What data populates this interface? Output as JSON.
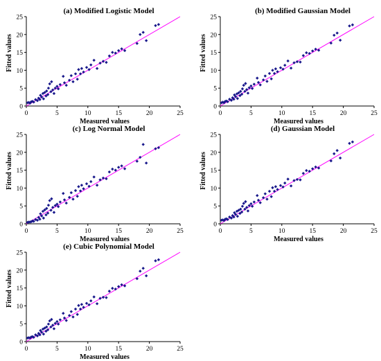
{
  "chart_data": [
    {
      "type": "scatter",
      "title": "(a) Modified Logistic Model",
      "xlabel": "Measured values",
      "ylabel": "Fitted values",
      "xlim": [
        0,
        25
      ],
      "ylim": [
        0,
        25
      ],
      "xticks": [
        0,
        5,
        10,
        15,
        20,
        25
      ],
      "yticks": [
        0,
        5,
        10,
        15,
        20,
        25
      ],
      "fit_line": [
        [
          0,
          0
        ],
        [
          25,
          25
        ]
      ],
      "points": [
        [
          0.2,
          0.9
        ],
        [
          0.4,
          1.0
        ],
        [
          0.6,
          0.8
        ],
        [
          0.8,
          1.2
        ],
        [
          1.0,
          1.3
        ],
        [
          1.2,
          1.1
        ],
        [
          1.5,
          1.8
        ],
        [
          1.8,
          1.5
        ],
        [
          2.0,
          2.2
        ],
        [
          2.2,
          1.8
        ],
        [
          2.3,
          3.0
        ],
        [
          2.5,
          2.5
        ],
        [
          2.7,
          3.5
        ],
        [
          2.8,
          2.0
        ],
        [
          3.0,
          3.8
        ],
        [
          3.2,
          2.8
        ],
        [
          3.3,
          4.2
        ],
        [
          3.5,
          3.2
        ],
        [
          3.6,
          5.0
        ],
        [
          3.8,
          6.2
        ],
        [
          4.0,
          4.0
        ],
        [
          4.1,
          6.8
        ],
        [
          4.3,
          4.5
        ],
        [
          4.5,
          3.5
        ],
        [
          4.7,
          5.0
        ],
        [
          5.0,
          5.5
        ],
        [
          5.2,
          4.8
        ],
        [
          5.5,
          6.0
        ],
        [
          6.0,
          8.3
        ],
        [
          6.2,
          6.5
        ],
        [
          6.5,
          5.8
        ],
        [
          7.0,
          7.2
        ],
        [
          7.3,
          8.5
        ],
        [
          7.6,
          6.8
        ],
        [
          8.0,
          9.0
        ],
        [
          8.3,
          7.5
        ],
        [
          8.5,
          10.2
        ],
        [
          8.8,
          9.0
        ],
        [
          9.0,
          10.5
        ],
        [
          9.3,
          9.5
        ],
        [
          9.8,
          10.8
        ],
        [
          10.2,
          10.2
        ],
        [
          10.5,
          11.5
        ],
        [
          11.0,
          12.8
        ],
        [
          11.5,
          10.5
        ],
        [
          12.0,
          12.0
        ],
        [
          12.5,
          12.5
        ],
        [
          13.0,
          12.2
        ],
        [
          13.5,
          14.0
        ],
        [
          14.0,
          15.0
        ],
        [
          14.5,
          14.8
        ],
        [
          15.0,
          15.5
        ],
        [
          15.5,
          16.0
        ],
        [
          16.0,
          15.5
        ],
        [
          18.0,
          17.5
        ],
        [
          18.5,
          20.0
        ],
        [
          19.0,
          20.6
        ],
        [
          19.5,
          18.3
        ],
        [
          21.0,
          22.5
        ],
        [
          21.5,
          22.8
        ]
      ]
    },
    {
      "type": "scatter",
      "title": "(b) Modified Gaussian Model",
      "xlabel": "Measured values",
      "ylabel": "Fitted values",
      "xlim": [
        0,
        25
      ],
      "ylim": [
        0,
        25
      ],
      "xticks": [
        0,
        5,
        10,
        15,
        20,
        25
      ],
      "yticks": [
        0,
        5,
        10,
        15,
        20,
        25
      ],
      "fit_line": [
        [
          0,
          0
        ],
        [
          25,
          25
        ]
      ],
      "points": [
        [
          0.2,
          0.9
        ],
        [
          0.4,
          1.1
        ],
        [
          0.6,
          0.9
        ],
        [
          0.8,
          1.3
        ],
        [
          1.0,
          1.4
        ],
        [
          1.2,
          1.2
        ],
        [
          1.5,
          1.9
        ],
        [
          1.8,
          1.6
        ],
        [
          2.0,
          2.3
        ],
        [
          2.2,
          1.9
        ],
        [
          2.3,
          3.1
        ],
        [
          2.5,
          2.6
        ],
        [
          2.7,
          3.4
        ],
        [
          2.8,
          2.1
        ],
        [
          3.0,
          3.7
        ],
        [
          3.2,
          2.9
        ],
        [
          3.3,
          4.1
        ],
        [
          3.5,
          3.3
        ],
        [
          3.6,
          4.8
        ],
        [
          3.8,
          5.8
        ],
        [
          4.0,
          4.1
        ],
        [
          4.1,
          6.3
        ],
        [
          4.3,
          4.6
        ],
        [
          4.5,
          3.6
        ],
        [
          4.7,
          5.1
        ],
        [
          5.0,
          5.6
        ],
        [
          5.2,
          4.9
        ],
        [
          5.5,
          6.1
        ],
        [
          6.0,
          7.8
        ],
        [
          6.2,
          6.6
        ],
        [
          6.5,
          5.9
        ],
        [
          7.0,
          7.3
        ],
        [
          7.3,
          8.4
        ],
        [
          7.6,
          6.9
        ],
        [
          8.0,
          9.1
        ],
        [
          8.3,
          7.6
        ],
        [
          8.5,
          10.0
        ],
        [
          8.8,
          9.1
        ],
        [
          9.0,
          10.4
        ],
        [
          9.3,
          9.6
        ],
        [
          9.8,
          10.7
        ],
        [
          10.2,
          10.3
        ],
        [
          10.5,
          11.4
        ],
        [
          11.0,
          12.6
        ],
        [
          11.5,
          10.6
        ],
        [
          12.0,
          12.1
        ],
        [
          12.5,
          12.4
        ],
        [
          13.0,
          12.3
        ],
        [
          13.5,
          14.1
        ],
        [
          14.0,
          14.9
        ],
        [
          14.5,
          14.7
        ],
        [
          15.0,
          15.4
        ],
        [
          15.5,
          15.9
        ],
        [
          16.0,
          15.6
        ],
        [
          18.0,
          17.6
        ],
        [
          18.5,
          19.8
        ],
        [
          19.0,
          20.4
        ],
        [
          19.5,
          18.4
        ],
        [
          21.0,
          22.4
        ],
        [
          21.5,
          22.7
        ]
      ]
    },
    {
      "type": "scatter",
      "title": "(c) Log Normal Model",
      "xlabel": "Measured values",
      "ylabel": "Fitted values",
      "xlim": [
        0,
        25
      ],
      "ylim": [
        0,
        25
      ],
      "xticks": [
        0,
        5,
        10,
        15,
        20,
        25
      ],
      "yticks": [
        0,
        5,
        10,
        15,
        20,
        25
      ],
      "fit_line": [
        [
          0,
          0
        ],
        [
          25,
          25
        ]
      ],
      "points": [
        [
          0.2,
          0.4
        ],
        [
          0.4,
          0.5
        ],
        [
          0.6,
          0.5
        ],
        [
          0.8,
          0.6
        ],
        [
          1.0,
          0.8
        ],
        [
          1.2,
          0.7
        ],
        [
          1.5,
          1.2
        ],
        [
          1.8,
          1.0
        ],
        [
          2.0,
          1.8
        ],
        [
          2.2,
          1.3
        ],
        [
          2.3,
          2.8
        ],
        [
          2.5,
          2.2
        ],
        [
          2.7,
          3.5
        ],
        [
          2.8,
          1.6
        ],
        [
          3.0,
          3.9
        ],
        [
          3.2,
          2.5
        ],
        [
          3.3,
          4.3
        ],
        [
          3.5,
          3.0
        ],
        [
          3.6,
          5.2
        ],
        [
          3.8,
          6.5
        ],
        [
          4.0,
          3.8
        ],
        [
          4.1,
          7.0
        ],
        [
          4.3,
          4.6
        ],
        [
          4.5,
          3.2
        ],
        [
          4.7,
          5.1
        ],
        [
          5.0,
          5.5
        ],
        [
          5.2,
          4.8
        ],
        [
          5.5,
          6.1
        ],
        [
          6.0,
          8.5
        ],
        [
          6.2,
          6.7
        ],
        [
          6.5,
          5.8
        ],
        [
          7.0,
          7.4
        ],
        [
          7.3,
          8.7
        ],
        [
          7.6,
          6.9
        ],
        [
          8.0,
          9.3
        ],
        [
          8.3,
          7.7
        ],
        [
          8.5,
          10.4
        ],
        [
          8.8,
          9.2
        ],
        [
          9.0,
          10.8
        ],
        [
          9.3,
          9.8
        ],
        [
          9.8,
          11.2
        ],
        [
          10.2,
          10.5
        ],
        [
          10.5,
          11.8
        ],
        [
          11.0,
          13.1
        ],
        [
          11.5,
          10.8
        ],
        [
          12.0,
          12.3
        ],
        [
          12.5,
          12.8
        ],
        [
          13.0,
          12.6
        ],
        [
          13.5,
          14.5
        ],
        [
          14.0,
          15.3
        ],
        [
          14.5,
          15.0
        ],
        [
          15.0,
          15.8
        ],
        [
          15.5,
          16.2
        ],
        [
          16.0,
          15.4
        ],
        [
          18.0,
          17.5
        ],
        [
          18.5,
          18.6
        ],
        [
          19.0,
          22.2
        ],
        [
          19.5,
          17.0
        ],
        [
          21.0,
          21.0
        ],
        [
          21.5,
          21.3
        ]
      ]
    },
    {
      "type": "scatter",
      "title": "(d) Gaussian Model",
      "xlabel": "Measured values",
      "ylabel": "Fitted values",
      "xlim": [
        0,
        25
      ],
      "ylim": [
        0,
        25
      ],
      "xticks": [
        0,
        5,
        10,
        15,
        20,
        25
      ],
      "yticks": [
        0,
        5,
        10,
        15,
        20,
        25
      ],
      "fit_line": [
        [
          0,
          0
        ],
        [
          25,
          25
        ]
      ],
      "points": [
        [
          0.2,
          1.0
        ],
        [
          0.4,
          1.1
        ],
        [
          0.6,
          0.9
        ],
        [
          0.8,
          1.3
        ],
        [
          1.0,
          1.4
        ],
        [
          1.2,
          1.2
        ],
        [
          1.5,
          1.9
        ],
        [
          1.8,
          1.6
        ],
        [
          2.0,
          2.3
        ],
        [
          2.2,
          1.9
        ],
        [
          2.3,
          3.1
        ],
        [
          2.5,
          2.6
        ],
        [
          2.7,
          3.5
        ],
        [
          2.8,
          2.1
        ],
        [
          3.0,
          3.8
        ],
        [
          3.2,
          2.9
        ],
        [
          3.3,
          4.1
        ],
        [
          3.5,
          3.3
        ],
        [
          3.6,
          4.9
        ],
        [
          3.8,
          5.7
        ],
        [
          4.0,
          4.1
        ],
        [
          4.1,
          6.2
        ],
        [
          4.3,
          4.6
        ],
        [
          4.5,
          3.6
        ],
        [
          4.7,
          5.1
        ],
        [
          5.0,
          5.6
        ],
        [
          5.2,
          4.9
        ],
        [
          5.5,
          6.1
        ],
        [
          6.0,
          7.9
        ],
        [
          6.2,
          6.6
        ],
        [
          6.5,
          5.9
        ],
        [
          7.0,
          7.3
        ],
        [
          7.3,
          8.4
        ],
        [
          7.6,
          6.9
        ],
        [
          8.0,
          9.1
        ],
        [
          8.3,
          7.6
        ],
        [
          8.5,
          10.1
        ],
        [
          8.8,
          9.1
        ],
        [
          9.0,
          10.4
        ],
        [
          9.3,
          9.6
        ],
        [
          9.8,
          10.7
        ],
        [
          10.2,
          10.3
        ],
        [
          10.5,
          11.4
        ],
        [
          11.0,
          12.5
        ],
        [
          11.5,
          10.6
        ],
        [
          12.0,
          12.1
        ],
        [
          12.5,
          12.4
        ],
        [
          13.0,
          12.3
        ],
        [
          13.5,
          14.1
        ],
        [
          14.0,
          14.9
        ],
        [
          14.5,
          14.7
        ],
        [
          15.0,
          15.4
        ],
        [
          15.5,
          15.9
        ],
        [
          16.0,
          15.6
        ],
        [
          18.0,
          17.6
        ],
        [
          18.5,
          19.6
        ],
        [
          19.0,
          20.5
        ],
        [
          19.5,
          18.4
        ],
        [
          21.0,
          22.5
        ],
        [
          21.5,
          22.9
        ]
      ]
    },
    {
      "type": "scatter",
      "title": "(e)  Cubic Polynomial Model",
      "xlabel": "Measured values",
      "ylabel": "Fitted values",
      "xlim": [
        0,
        25
      ],
      "ylim": [
        0,
        25
      ],
      "xticks": [
        0,
        5,
        10,
        15,
        20,
        25
      ],
      "yticks": [
        0,
        5,
        10,
        15,
        20,
        25
      ],
      "fit_line": [
        [
          0,
          0
        ],
        [
          25,
          25
        ]
      ],
      "points": [
        [
          0.2,
          1.0
        ],
        [
          0.4,
          1.1
        ],
        [
          0.6,
          1.0
        ],
        [
          0.8,
          1.3
        ],
        [
          1.0,
          1.4
        ],
        [
          1.2,
          1.2
        ],
        [
          1.5,
          1.9
        ],
        [
          1.8,
          1.6
        ],
        [
          2.0,
          2.3
        ],
        [
          2.2,
          1.9
        ],
        [
          2.3,
          3.1
        ],
        [
          2.5,
          2.6
        ],
        [
          2.7,
          3.5
        ],
        [
          2.8,
          2.1
        ],
        [
          3.0,
          3.8
        ],
        [
          3.2,
          2.9
        ],
        [
          3.3,
          4.1
        ],
        [
          3.5,
          3.3
        ],
        [
          3.6,
          4.9
        ],
        [
          3.8,
          5.8
        ],
        [
          4.0,
          4.1
        ],
        [
          4.1,
          6.2
        ],
        [
          4.3,
          4.6
        ],
        [
          4.5,
          3.6
        ],
        [
          4.7,
          5.1
        ],
        [
          5.0,
          5.6
        ],
        [
          5.2,
          4.9
        ],
        [
          5.5,
          6.1
        ],
        [
          6.0,
          7.9
        ],
        [
          6.2,
          6.6
        ],
        [
          6.5,
          5.9
        ],
        [
          7.0,
          7.3
        ],
        [
          7.3,
          8.4
        ],
        [
          7.6,
          6.9
        ],
        [
          8.0,
          9.1
        ],
        [
          8.3,
          7.6
        ],
        [
          8.5,
          10.1
        ],
        [
          8.8,
          9.1
        ],
        [
          9.0,
          10.4
        ],
        [
          9.3,
          9.6
        ],
        [
          9.8,
          10.7
        ],
        [
          10.2,
          10.3
        ],
        [
          10.5,
          11.4
        ],
        [
          11.0,
          12.5
        ],
        [
          11.5,
          10.6
        ],
        [
          12.0,
          12.1
        ],
        [
          12.5,
          12.4
        ],
        [
          13.0,
          12.3
        ],
        [
          13.5,
          14.1
        ],
        [
          14.0,
          14.9
        ],
        [
          14.5,
          14.7
        ],
        [
          15.0,
          15.4
        ],
        [
          15.5,
          15.9
        ],
        [
          16.0,
          15.6
        ],
        [
          18.0,
          17.6
        ],
        [
          18.5,
          19.7
        ],
        [
          19.0,
          20.5
        ],
        [
          19.5,
          18.4
        ],
        [
          21.0,
          22.6
        ],
        [
          21.5,
          22.9
        ]
      ]
    }
  ],
  "colors": {
    "points": "#1a1a8c",
    "fit_line": "#ff00ff"
  }
}
